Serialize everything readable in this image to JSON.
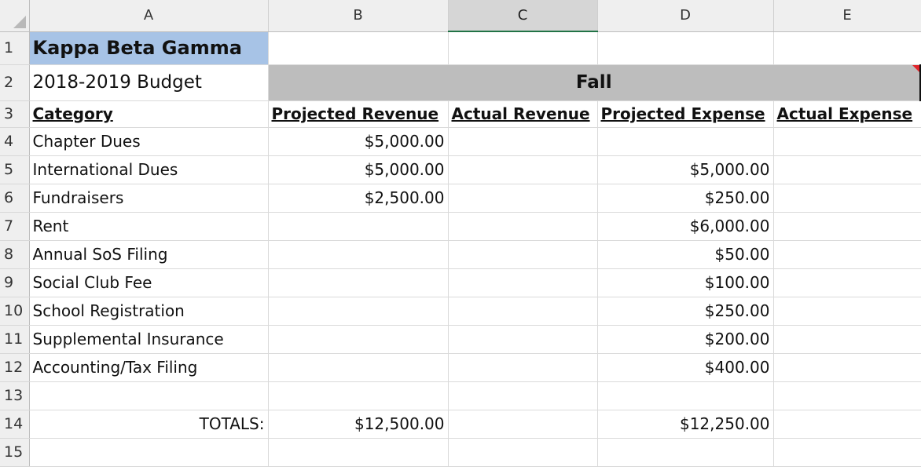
{
  "columns": [
    "A",
    "B",
    "C",
    "D",
    "E"
  ],
  "rows": [
    {
      "num": "1",
      "a": "Kappa Beta Gamma",
      "b": "",
      "c": "",
      "d": "",
      "e": ""
    },
    {
      "num": "2",
      "a": "2018-2019 Budget",
      "fall": "Fall"
    },
    {
      "num": "3",
      "a": "Category",
      "b": "Projected Revenue",
      "c": "Actual Revenue",
      "d": "Projected Expense",
      "e": "Actual Expense"
    },
    {
      "num": "4",
      "a": "Chapter Dues",
      "b": "$5,000.00",
      "c": "",
      "d": "",
      "e": ""
    },
    {
      "num": "5",
      "a": "International Dues",
      "b": "$5,000.00",
      "c": "",
      "d": "$5,000.00",
      "e": ""
    },
    {
      "num": "6",
      "a": "Fundraisers",
      "b": "$2,500.00",
      "c": "",
      "d": "$250.00",
      "e": ""
    },
    {
      "num": "7",
      "a": "Rent",
      "b": "",
      "c": "",
      "d": "$6,000.00",
      "e": ""
    },
    {
      "num": "8",
      "a": "Annual SoS Filing",
      "b": "",
      "c": "",
      "d": "$50.00",
      "e": ""
    },
    {
      "num": "9",
      "a": "Social Club Fee",
      "b": "",
      "c": "",
      "d": "$100.00",
      "e": ""
    },
    {
      "num": "10",
      "a": "School Registration",
      "b": "",
      "c": "",
      "d": "$250.00",
      "e": ""
    },
    {
      "num": "11",
      "a": "Supplemental Insurance",
      "b": "",
      "c": "",
      "d": "$200.00",
      "e": ""
    },
    {
      "num": "12",
      "a": "Accounting/Tax Filing",
      "b": "",
      "c": "",
      "d": "$400.00",
      "e": ""
    },
    {
      "num": "13",
      "a": "",
      "b": "",
      "c": "",
      "d": "",
      "e": ""
    },
    {
      "num": "14",
      "a": "TOTALS:",
      "b": "$12,500.00",
      "c": "",
      "d": "$12,250.00",
      "e": ""
    },
    {
      "num": "15",
      "a": "",
      "b": "",
      "c": "",
      "d": "",
      "e": ""
    }
  ],
  "colors": {
    "title_fill": "#a7c3e6",
    "fall_fill": "#bdbdbd",
    "selected_column_accent": "#217346",
    "comment_marker": "#e0242a"
  }
}
